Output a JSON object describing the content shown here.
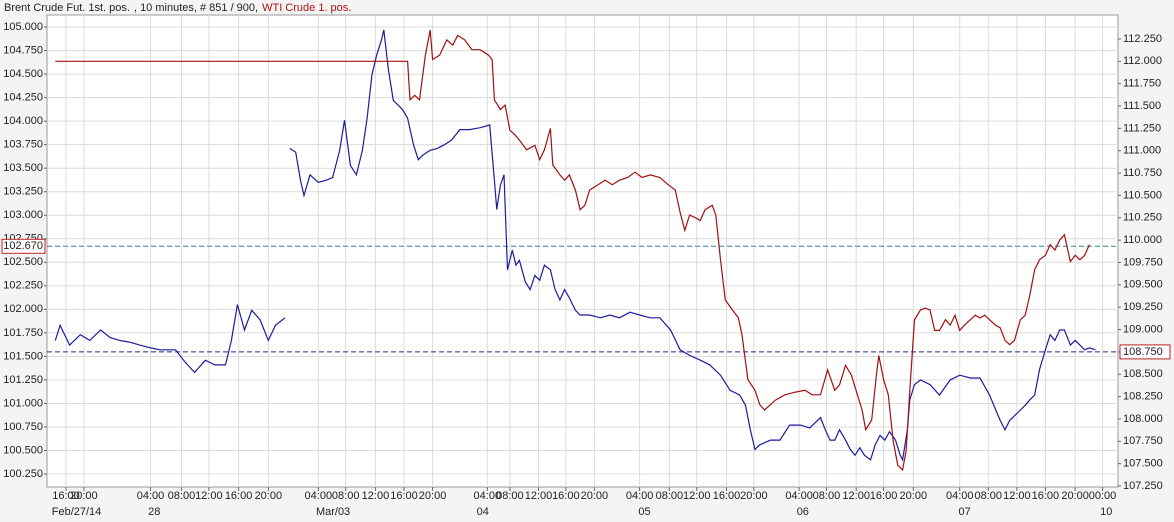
{
  "chart_data": {
    "type": "line",
    "title": ", 10 minutes, # 851 / 900,",
    "xlim": [
      0,
      900
    ],
    "ylim": [
      100.112,
      105.128
    ],
    "y2lim": [
      107.239,
      112.518
    ],
    "grid": true,
    "yticks": [
      {
        "value": 100.25,
        "label": "100.250"
      },
      {
        "value": 100.5,
        "label": "100.500"
      },
      {
        "value": 100.75,
        "label": "100.750"
      },
      {
        "value": 101,
        "label": "101.000"
      },
      {
        "value": 101.25,
        "label": "101.250"
      },
      {
        "value": 101.5,
        "label": "101.500"
      },
      {
        "value": 101.75,
        "label": "101.750"
      },
      {
        "value": 102,
        "label": "102.000"
      },
      {
        "value": 102.25,
        "label": "102.250"
      },
      {
        "value": 102.5,
        "label": "102.500"
      },
      {
        "value": 102.75,
        "label": "102.750"
      },
      {
        "value": 103,
        "label": "103.000"
      },
      {
        "value": 103.25,
        "label": "103.250"
      },
      {
        "value": 103.5,
        "label": "103.500"
      },
      {
        "value": 103.75,
        "label": "103.750"
      },
      {
        "value": 104,
        "label": "104.000"
      },
      {
        "value": 104.25,
        "label": "104.250"
      },
      {
        "value": 104.5,
        "label": "104.500"
      },
      {
        "value": 104.75,
        "label": "104.750"
      },
      {
        "value": 105,
        "label": "105.000"
      }
    ],
    "y2ticks": [
      {
        "value": 107.25,
        "label": "107.250"
      },
      {
        "value": 107.5,
        "label": "107.500"
      },
      {
        "value": 107.75,
        "label": "107.750"
      },
      {
        "value": 108,
        "label": "108.000"
      },
      {
        "value": 108.25,
        "label": "108.250"
      },
      {
        "value": 108.5,
        "label": "108.500"
      },
      {
        "value": 108.75,
        "label": "108.750"
      },
      {
        "value": 109,
        "label": "109.000"
      },
      {
        "value": 109.25,
        "label": "109.250"
      },
      {
        "value": 109.5,
        "label": "109.500"
      },
      {
        "value": 109.75,
        "label": "109.750"
      },
      {
        "value": 110,
        "label": "110.000"
      },
      {
        "value": 110.25,
        "label": "110.250"
      },
      {
        "value": 110.5,
        "label": "110.500"
      },
      {
        "value": 110.75,
        "label": "110.750"
      },
      {
        "value": 111,
        "label": "111.000"
      },
      {
        "value": 111.25,
        "label": "111.250"
      },
      {
        "value": 111.5,
        "label": "111.500"
      },
      {
        "value": 111.75,
        "label": "111.750"
      },
      {
        "value": 112,
        "label": "112.000"
      },
      {
        "value": 112.25,
        "label": "112.250"
      }
    ],
    "xticks": [
      {
        "value": 16,
        "label": "16:00"
      },
      {
        "value": 31,
        "label": "20:00"
      },
      {
        "value": 87,
        "label": "04:00"
      },
      {
        "value": 113,
        "label": "08:00"
      },
      {
        "value": 136,
        "label": "12:00"
      },
      {
        "value": 161,
        "label": "16:00"
      },
      {
        "value": 186,
        "label": "20:00"
      },
      {
        "value": 228,
        "label": "04:00"
      },
      {
        "value": 251,
        "label": "08:00"
      },
      {
        "value": 276,
        "label": "12:00"
      },
      {
        "value": 300,
        "label": "16:00"
      },
      {
        "value": 324,
        "label": "20:00"
      },
      {
        "value": 370,
        "label": "04:00"
      },
      {
        "value": 389,
        "label": "08:00"
      },
      {
        "value": 413,
        "label": "12:00"
      },
      {
        "value": 436,
        "label": "16:00"
      },
      {
        "value": 460,
        "label": "20:00"
      },
      {
        "value": 498,
        "label": "04:00"
      },
      {
        "value": 523,
        "label": "08:00"
      },
      {
        "value": 546,
        "label": "12:00"
      },
      {
        "value": 571,
        "label": "16:00"
      },
      {
        "value": 594,
        "label": "20:00"
      },
      {
        "value": 632,
        "label": "04:00"
      },
      {
        "value": 655,
        "label": "08:00"
      },
      {
        "value": 680,
        "label": "12:00"
      },
      {
        "value": 703,
        "label": "16:00"
      },
      {
        "value": 728,
        "label": "20:00"
      },
      {
        "value": 767,
        "label": "04:00"
      },
      {
        "value": 791,
        "label": "08:00"
      },
      {
        "value": 815,
        "label": "12:00"
      },
      {
        "value": 839,
        "label": "16:00"
      },
      {
        "value": 864,
        "label": "20:00"
      },
      {
        "value": 887,
        "label": "00:00"
      }
    ],
    "date_ticks": [
      {
        "value": 4,
        "label": "Feb/27/14"
      },
      {
        "value": 85,
        "label": "28"
      },
      {
        "value": 226,
        "label": "Mar/03"
      },
      {
        "value": 361,
        "label": "04"
      },
      {
        "value": 497,
        "label": "05"
      },
      {
        "value": 630,
        "label": "06"
      },
      {
        "value": 766,
        "label": "07"
      },
      {
        "value": 885,
        "label": "10"
      }
    ],
    "reference_lines": [
      {
        "value": 102.67,
        "label": "102.670",
        "axis": "y",
        "color": "#2a8a9a"
      },
      {
        "value": 108.75,
        "label": "108.750",
        "axis": "y2",
        "color": "#20208a"
      }
    ],
    "series": [
      {
        "name": "Brent Crude Fut. 1st. pos.",
        "color": "#1c1c9c",
        "axis": "y",
        "x": [
          7,
          11,
          19,
          28,
          36,
          45,
          53,
          61,
          70,
          78,
          87,
          95,
          108,
          116,
          124,
          133,
          141,
          150,
          155,
          160,
          166,
          172,
          179,
          186,
          192,
          200,
          202,
          204,
          209,
          213,
          216,
          221,
          228,
          234,
          240,
          246,
          250,
          255,
          260,
          265,
          269,
          273,
          277,
          281,
          283,
          287,
          291,
          295,
          299,
          303,
          308,
          312,
          316,
          322,
          328,
          334,
          340,
          347,
          355,
          364,
          372,
          376,
          378,
          381,
          384,
          387,
          391,
          394,
          397,
          402,
          406,
          410,
          414,
          418,
          423,
          427,
          431,
          435,
          439,
          444,
          448,
          456,
          465,
          473,
          481,
          490,
          498,
          507,
          515,
          524,
          532,
          540,
          549,
          557,
          566,
          574,
          582,
          587,
          591,
          595,
          599,
          608,
          616,
          624,
          633,
          641,
          650,
          654,
          658,
          662,
          666,
          671,
          675,
          679,
          683,
          687,
          692,
          696,
          700,
          704,
          708,
          713,
          717,
          719,
          723,
          725,
          729,
          734,
          742,
          750,
          759,
          767,
          776,
          784,
          792,
          801,
          805,
          809,
          818,
          822,
          826,
          830,
          834,
          839,
          843,
          847,
          851,
          855,
          860,
          864,
          868,
          872,
          876,
          881
        ],
        "values": [
          101.67,
          101.83,
          101.62,
          101.73,
          101.67,
          101.78,
          101.7,
          101.67,
          101.65,
          101.62,
          101.59,
          101.57,
          101.57,
          101.44,
          101.33,
          101.46,
          101.41,
          101.41,
          101.67,
          102.05,
          101.78,
          101.99,
          101.89,
          101.67,
          101.83,
          101.91,
          null,
          103.71,
          103.67,
          103.37,
          103.21,
          103.43,
          103.35,
          103.37,
          103.4,
          103.69,
          104.01,
          103.53,
          103.43,
          103.69,
          104.03,
          104.49,
          104.7,
          104.86,
          104.97,
          104.54,
          104.22,
          104.17,
          104.12,
          104.03,
          103.75,
          103.59,
          103.64,
          103.69,
          103.71,
          103.75,
          103.8,
          103.91,
          103.91,
          103.93,
          103.96,
          103.37,
          103.06,
          103.32,
          103.43,
          102.42,
          102.63,
          102.47,
          102.52,
          102.29,
          102.21,
          102.36,
          102.31,
          102.47,
          102.42,
          102.21,
          102.1,
          102.21,
          102.12,
          101.99,
          101.94,
          101.94,
          101.91,
          101.94,
          101.91,
          101.97,
          101.94,
          101.91,
          101.91,
          101.78,
          101.57,
          101.51,
          101.46,
          101.41,
          101.3,
          101.14,
          101.09,
          100.98,
          100.72,
          100.51,
          100.56,
          100.61,
          100.61,
          100.77,
          100.77,
          100.74,
          100.85,
          100.72,
          100.61,
          100.61,
          100.72,
          100.61,
          100.51,
          100.45,
          100.53,
          100.45,
          100.4,
          100.56,
          100.66,
          100.61,
          100.7,
          100.61,
          100.45,
          100.4,
          100.72,
          101.04,
          101.2,
          101.25,
          101.2,
          101.09,
          101.25,
          101.3,
          101.27,
          101.27,
          101.09,
          100.82,
          100.72,
          100.82,
          100.93,
          100.98,
          101.04,
          101.09,
          101.36,
          101.57,
          101.73,
          101.67,
          101.78,
          101.78,
          101.62,
          101.67,
          101.62,
          101.57,
          101.59,
          101.57
        ]
      },
      {
        "name": "WTI Crude 1. pos.",
        "color": "#a01010",
        "axis": "y2",
        "x": [
          7,
          303,
          305,
          309,
          313,
          318,
          322,
          324,
          330,
          336,
          341,
          345,
          351,
          357,
          364,
          371,
          374,
          376,
          381,
          385,
          389,
          393,
          397,
          403,
          410,
          414,
          418,
          423,
          425,
          431,
          435,
          439,
          444,
          448,
          452,
          456,
          463,
          469,
          475,
          481,
          488,
          494,
          500,
          507,
          515,
          522,
          528,
          532,
          536,
          540,
          545,
          549,
          553,
          559,
          562,
          566,
          570,
          576,
          581,
          584,
          589,
          595,
          599,
          603,
          612,
          620,
          629,
          637,
          643,
          650,
          656,
          662,
          666,
          671,
          676,
          681,
          685,
          688,
          693,
          697,
          699,
          703,
          707,
          711,
          715,
          719,
          722,
          725,
          729,
          734,
          738,
          742,
          746,
          750,
          755,
          759,
          763,
          767,
          771,
          776,
          780,
          784,
          788,
          792,
          797,
          801,
          805,
          809,
          813,
          818,
          822,
          826,
          830,
          834,
          839,
          843,
          847,
          851,
          855,
          860,
          864,
          868,
          872,
          876
        ],
        "values": [
          112.0,
          112.0,
          111.57,
          111.62,
          111.57,
          112.07,
          112.35,
          112.02,
          112.07,
          112.24,
          112.18,
          112.29,
          112.24,
          112.13,
          112.13,
          112.07,
          112.02,
          111.57,
          111.46,
          111.51,
          111.23,
          111.18,
          111.12,
          111.01,
          111.06,
          110.9,
          111.01,
          111.25,
          110.84,
          110.73,
          110.67,
          110.73,
          110.56,
          110.34,
          110.39,
          110.56,
          110.62,
          110.67,
          110.62,
          110.67,
          110.7,
          110.76,
          110.7,
          110.73,
          110.7,
          110.62,
          110.56,
          110.31,
          110.11,
          110.28,
          110.25,
          110.22,
          110.34,
          110.39,
          110.28,
          109.78,
          109.33,
          109.22,
          109.13,
          108.94,
          108.44,
          108.32,
          108.16,
          108.1,
          108.21,
          108.27,
          108.3,
          108.32,
          108.27,
          108.27,
          108.55,
          108.32,
          108.38,
          108.6,
          108.49,
          108.27,
          108.1,
          107.88,
          107.99,
          108.49,
          108.71,
          108.44,
          108.27,
          107.76,
          107.48,
          107.43,
          107.65,
          108.32,
          109.11,
          109.22,
          109.24,
          109.22,
          108.99,
          108.99,
          109.11,
          109.05,
          109.16,
          108.99,
          109.05,
          109.11,
          109.16,
          109.13,
          109.16,
          109.11,
          109.05,
          109.02,
          108.88,
          108.83,
          108.88,
          109.11,
          109.16,
          109.39,
          109.67,
          109.78,
          109.83,
          109.95,
          109.89,
          110.0,
          110.06,
          109.76,
          109.83,
          109.78,
          109.83,
          109.95
        ]
      }
    ]
  }
}
